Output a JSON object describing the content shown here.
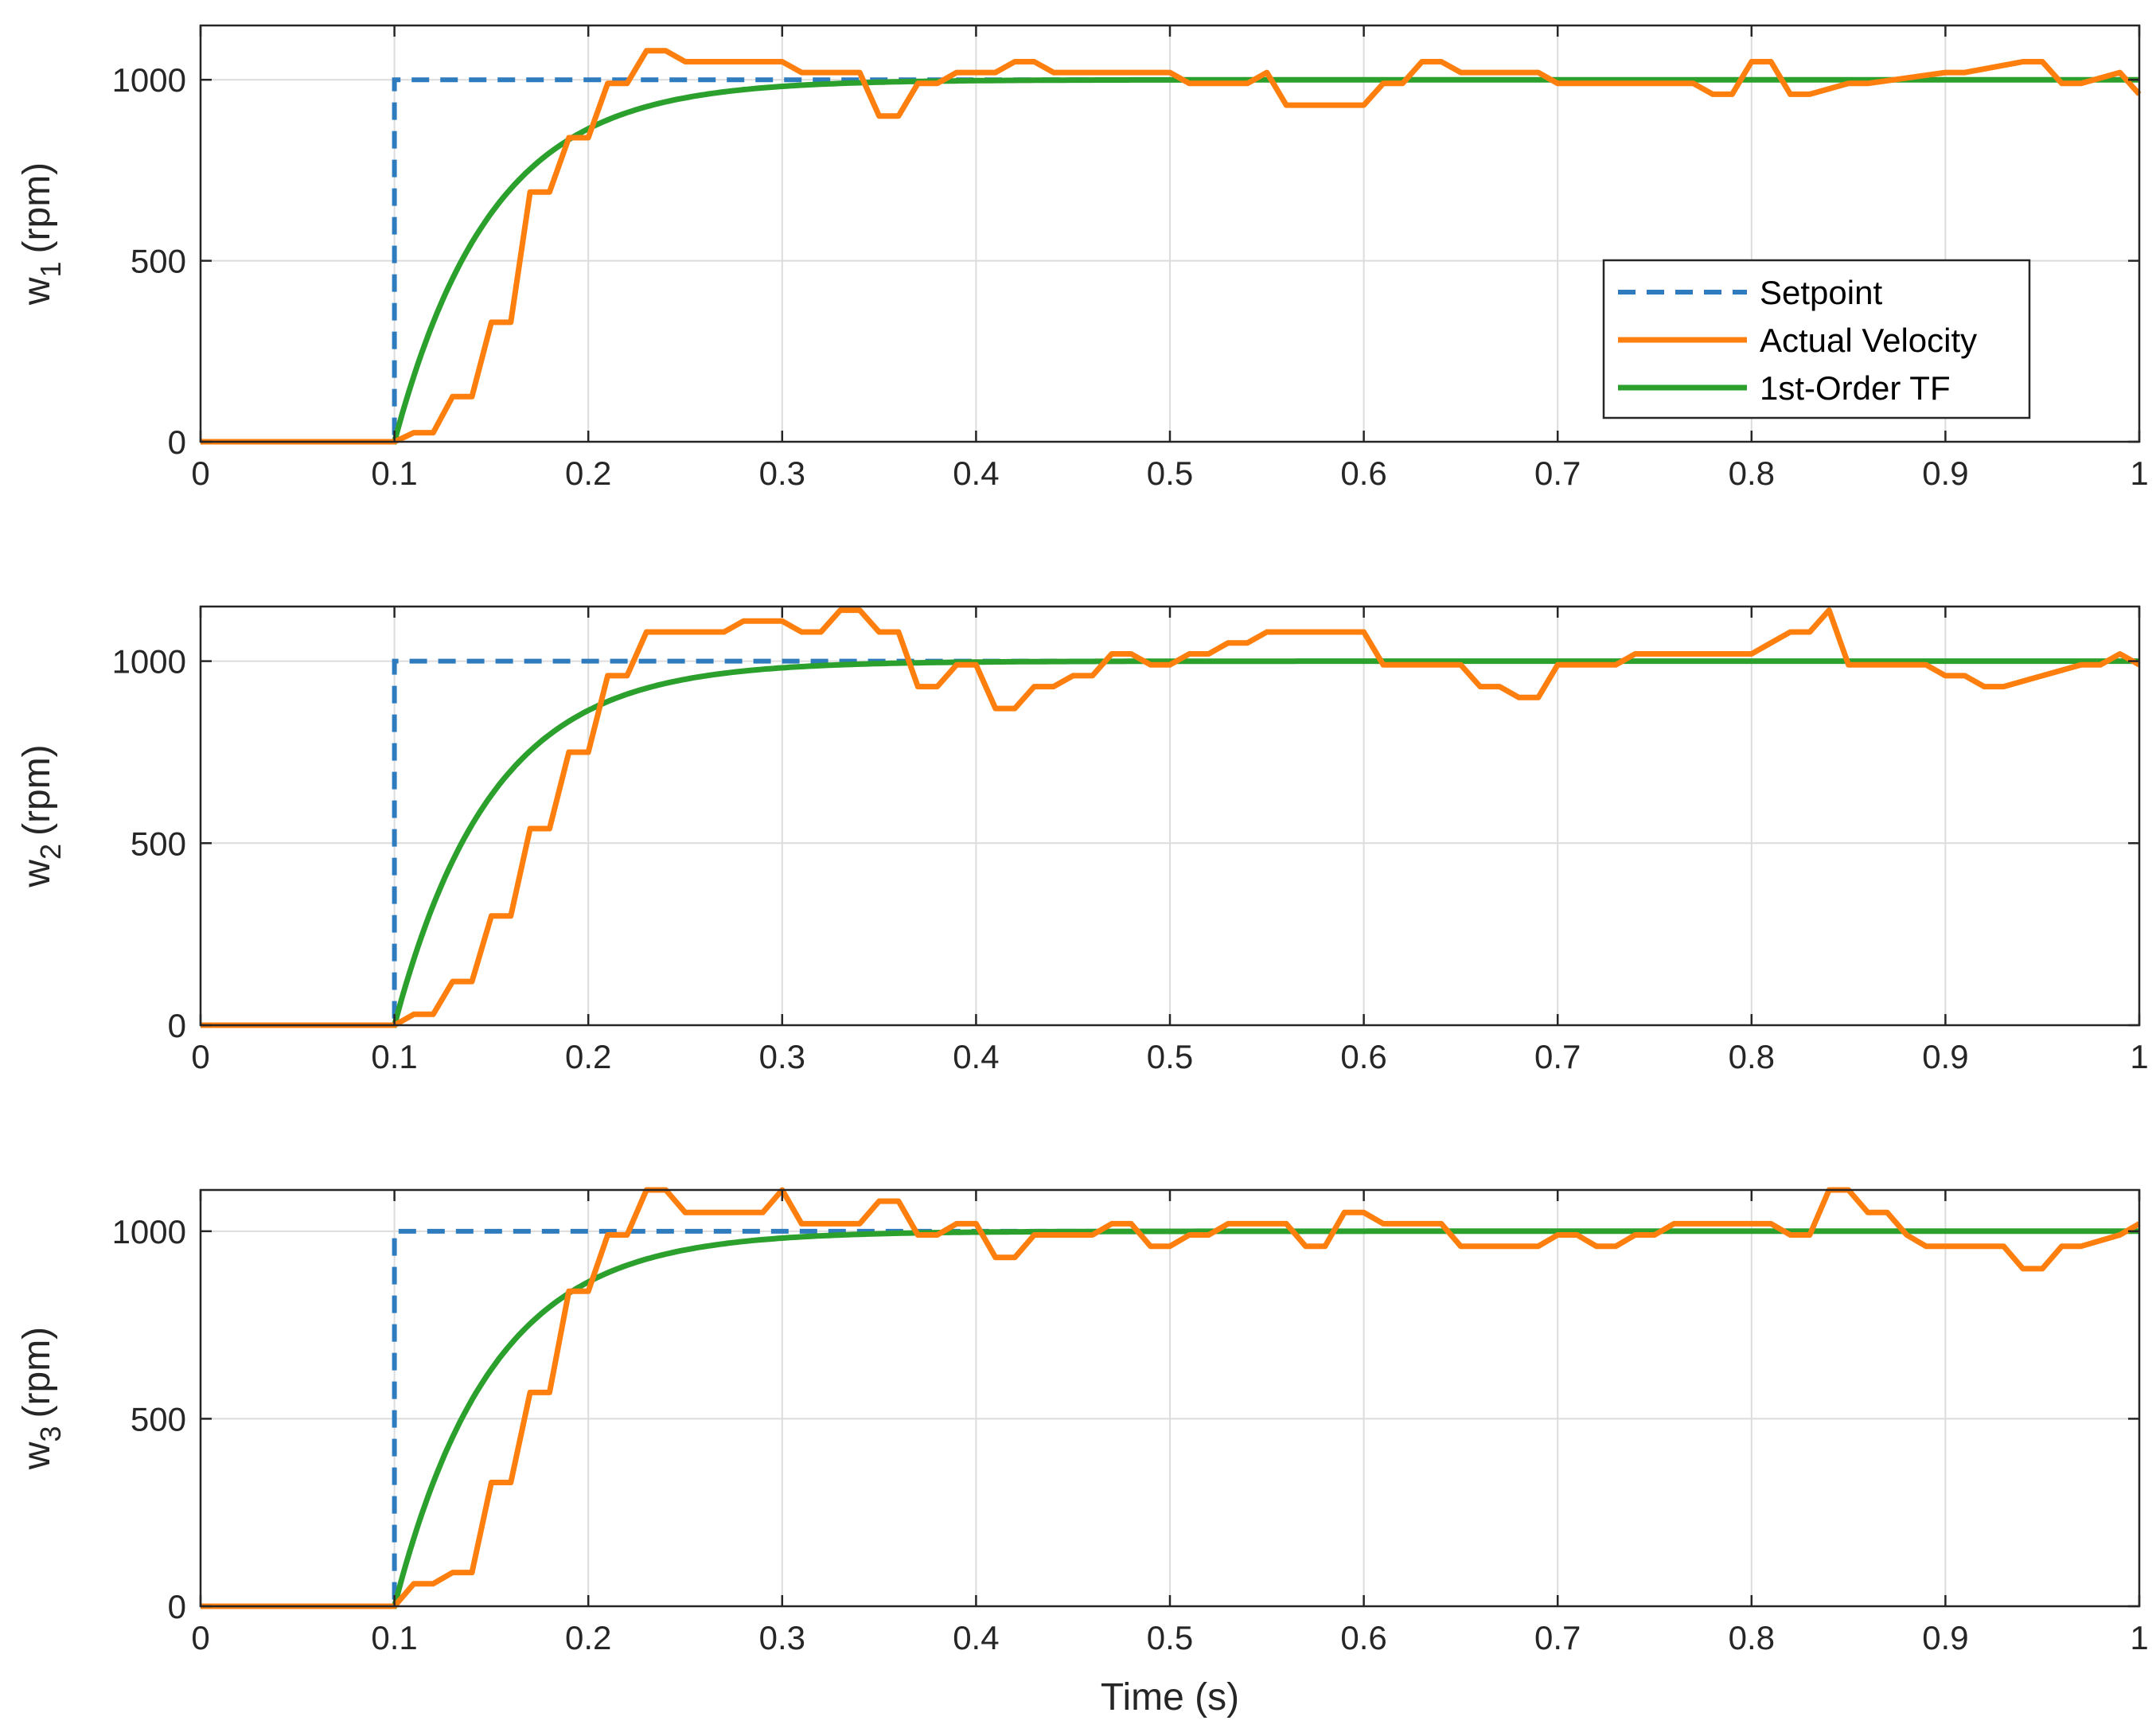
{
  "colors": {
    "setpoint": "#2e7bbd",
    "actual": "#ff7f0e",
    "tf": "#2ca02c",
    "grid": "#dcdcdc",
    "axes": "#262626"
  },
  "legend": {
    "items": [
      {
        "label": "Setpoint",
        "series": "setpoint",
        "dash": true
      },
      {
        "label": "Actual Velocity",
        "series": "actual",
        "dash": false
      },
      {
        "label": "1st-Order TF",
        "series": "tf",
        "dash": false
      }
    ]
  },
  "chart_data": [
    {
      "type": "line",
      "ylabel": "w",
      "ylabel_sub": "1",
      "ylabel_unit": "(rpm)",
      "xlabel": "",
      "xlim": [
        0,
        1
      ],
      "ylim": [
        0,
        1150
      ],
      "xticks": [
        0,
        0.1,
        0.2,
        0.3,
        0.4,
        0.5,
        0.6,
        0.7,
        0.8,
        0.9,
        1
      ],
      "xtick_labels": [
        "0",
        "0.1",
        "0.2",
        "0.3",
        "0.4",
        "0.5",
        "0.6",
        "0.7",
        "0.8",
        "0.9",
        "1"
      ],
      "yticks": [
        0,
        500,
        1000
      ],
      "ytick_labels": [
        "0",
        "500",
        "1000"
      ],
      "grid": true,
      "legend_location": "east",
      "series": [
        {
          "name": "Setpoint",
          "key": "setpoint",
          "step_time": 0.1,
          "before": 0,
          "after": 1000
        },
        {
          "name": "1st-Order TF",
          "key": "tf",
          "step_time": 0.1,
          "gain": 1000,
          "tau": 0.05
        },
        {
          "name": "Actual Velocity",
          "key": "actual",
          "x": [
            0,
            0.1,
            0.11,
            0.12,
            0.13,
            0.14,
            0.15,
            0.16,
            0.17,
            0.18,
            0.19,
            0.2,
            0.21,
            0.22,
            0.23,
            0.24,
            0.25,
            0.26,
            0.3,
            0.31,
            0.34,
            0.35,
            0.36,
            0.37,
            0.38,
            0.39,
            0.41,
            0.42,
            0.43,
            0.44,
            0.45,
            0.5,
            0.51,
            0.54,
            0.55,
            0.56,
            0.57,
            0.6,
            0.61,
            0.62,
            0.63,
            0.64,
            0.65,
            0.66,
            0.69,
            0.7,
            0.77,
            0.78,
            0.79,
            0.8,
            0.81,
            0.82,
            0.83,
            0.85,
            0.86,
            0.9,
            0.91,
            0.94,
            0.95,
            0.96,
            0.97,
            0.99,
            1.0
          ],
          "y": [
            0,
            0,
            25,
            25,
            125,
            125,
            330,
            330,
            690,
            690,
            840,
            840,
            990,
            990,
            1080,
            1080,
            1050,
            1050,
            1050,
            1020,
            1020,
            900,
            900,
            990,
            990,
            1020,
            1020,
            1050,
            1050,
            1020,
            1020,
            1020,
            990,
            990,
            1020,
            930,
            930,
            930,
            990,
            990,
            1050,
            1050,
            1020,
            1020,
            1020,
            990,
            990,
            960,
            960,
            1050,
            1050,
            960,
            960,
            990,
            990,
            1020,
            1020,
            1050,
            1050,
            990,
            990,
            1020,
            960
          ]
        }
      ]
    },
    {
      "type": "line",
      "ylabel": "w",
      "ylabel_sub": "2",
      "ylabel_unit": "(rpm)",
      "xlabel": "",
      "xlim": [
        0,
        1
      ],
      "ylim": [
        0,
        1150
      ],
      "xticks": [
        0,
        0.1,
        0.2,
        0.3,
        0.4,
        0.5,
        0.6,
        0.7,
        0.8,
        0.9,
        1
      ],
      "xtick_labels": [
        "0",
        "0.1",
        "0.2",
        "0.3",
        "0.4",
        "0.5",
        "0.6",
        "0.7",
        "0.8",
        "0.9",
        "1"
      ],
      "yticks": [
        0,
        500,
        1000
      ],
      "ytick_labels": [
        "0",
        "500",
        "1000"
      ],
      "grid": true,
      "series": [
        {
          "name": "Setpoint",
          "key": "setpoint",
          "step_time": 0.1,
          "before": 0,
          "after": 1000
        },
        {
          "name": "1st-Order TF",
          "key": "tf",
          "step_time": 0.1,
          "gain": 1000,
          "tau": 0.05
        },
        {
          "name": "Actual Velocity",
          "key": "actual",
          "x": [
            0,
            0.1,
            0.11,
            0.12,
            0.13,
            0.14,
            0.15,
            0.16,
            0.17,
            0.18,
            0.19,
            0.2,
            0.21,
            0.22,
            0.23,
            0.24,
            0.27,
            0.28,
            0.3,
            0.31,
            0.32,
            0.33,
            0.34,
            0.35,
            0.36,
            0.37,
            0.38,
            0.39,
            0.4,
            0.41,
            0.42,
            0.43,
            0.44,
            0.45,
            0.46,
            0.47,
            0.48,
            0.49,
            0.5,
            0.51,
            0.52,
            0.53,
            0.54,
            0.55,
            0.6,
            0.61,
            0.64,
            0.65,
            0.66,
            0.67,
            0.68,
            0.69,
            0.7,
            0.73,
            0.74,
            0.79,
            0.8,
            0.81,
            0.82,
            0.83,
            0.84,
            0.85,
            0.88,
            0.89,
            0.9,
            0.91,
            0.92,
            0.93,
            0.97,
            0.98,
            0.99,
            1.0
          ],
          "y": [
            0,
            0,
            30,
            30,
            120,
            120,
            300,
            300,
            540,
            540,
            750,
            750,
            960,
            960,
            1080,
            1080,
            1080,
            1110,
            1110,
            1080,
            1080,
            1140,
            1140,
            1080,
            1080,
            930,
            930,
            990,
            990,
            870,
            870,
            930,
            930,
            960,
            960,
            1020,
            1020,
            990,
            990,
            1020,
            1020,
            1050,
            1050,
            1080,
            1080,
            990,
            990,
            990,
            930,
            930,
            900,
            900,
            990,
            990,
            1020,
            1020,
            1020,
            1050,
            1080,
            1080,
            1140,
            990,
            990,
            990,
            960,
            960,
            930,
            930,
            990,
            990,
            1020,
            990
          ]
        }
      ]
    },
    {
      "type": "line",
      "ylabel": "w",
      "ylabel_sub": "3",
      "ylabel_unit": "(rpm)",
      "xlabel": "Time (s)",
      "xlim": [
        0,
        1
      ],
      "ylim": [
        0,
        1110
      ],
      "xticks": [
        0,
        0.1,
        0.2,
        0.3,
        0.4,
        0.5,
        0.6,
        0.7,
        0.8,
        0.9,
        1
      ],
      "xtick_labels": [
        "0",
        "0.1",
        "0.2",
        "0.3",
        "0.4",
        "0.5",
        "0.6",
        "0.7",
        "0.8",
        "0.9",
        "1"
      ],
      "yticks": [
        0,
        500,
        1000
      ],
      "ytick_labels": [
        "0",
        "500",
        "1000"
      ],
      "grid": true,
      "series": [
        {
          "name": "Setpoint",
          "key": "setpoint",
          "step_time": 0.1,
          "before": 0,
          "after": 1000
        },
        {
          "name": "1st-Order TF",
          "key": "tf",
          "step_time": 0.1,
          "gain": 1000,
          "tau": 0.05
        },
        {
          "name": "Actual Velocity",
          "key": "actual",
          "x": [
            0,
            0.1,
            0.11,
            0.12,
            0.13,
            0.14,
            0.15,
            0.16,
            0.17,
            0.18,
            0.19,
            0.2,
            0.21,
            0.22,
            0.23,
            0.24,
            0.25,
            0.26,
            0.29,
            0.3,
            0.31,
            0.34,
            0.35,
            0.36,
            0.37,
            0.38,
            0.39,
            0.4,
            0.41,
            0.42,
            0.43,
            0.46,
            0.47,
            0.48,
            0.49,
            0.5,
            0.51,
            0.52,
            0.53,
            0.56,
            0.57,
            0.58,
            0.59,
            0.6,
            0.61,
            0.64,
            0.65,
            0.68,
            0.69,
            0.7,
            0.71,
            0.72,
            0.73,
            0.74,
            0.75,
            0.76,
            0.77,
            0.78,
            0.81,
            0.82,
            0.83,
            0.84,
            0.85,
            0.86,
            0.87,
            0.88,
            0.89,
            0.92,
            0.93,
            0.94,
            0.95,
            0.96,
            0.97,
            0.99,
            1.0
          ],
          "y": [
            0,
            0,
            60,
            60,
            90,
            90,
            330,
            330,
            570,
            570,
            840,
            840,
            990,
            990,
            1110,
            1110,
            1050,
            1050,
            1050,
            1110,
            1020,
            1020,
            1080,
            1080,
            990,
            990,
            1020,
            1020,
            930,
            930,
            990,
            990,
            1020,
            1020,
            960,
            960,
            990,
            990,
            1020,
            1020,
            960,
            960,
            1050,
            1050,
            1020,
            1020,
            960,
            960,
            960,
            990,
            990,
            960,
            960,
            990,
            990,
            1020,
            1020,
            1020,
            1020,
            990,
            990,
            1110,
            1110,
            1050,
            1050,
            990,
            960,
            960,
            960,
            900,
            900,
            960,
            960,
            990,
            1020
          ]
        }
      ]
    }
  ]
}
